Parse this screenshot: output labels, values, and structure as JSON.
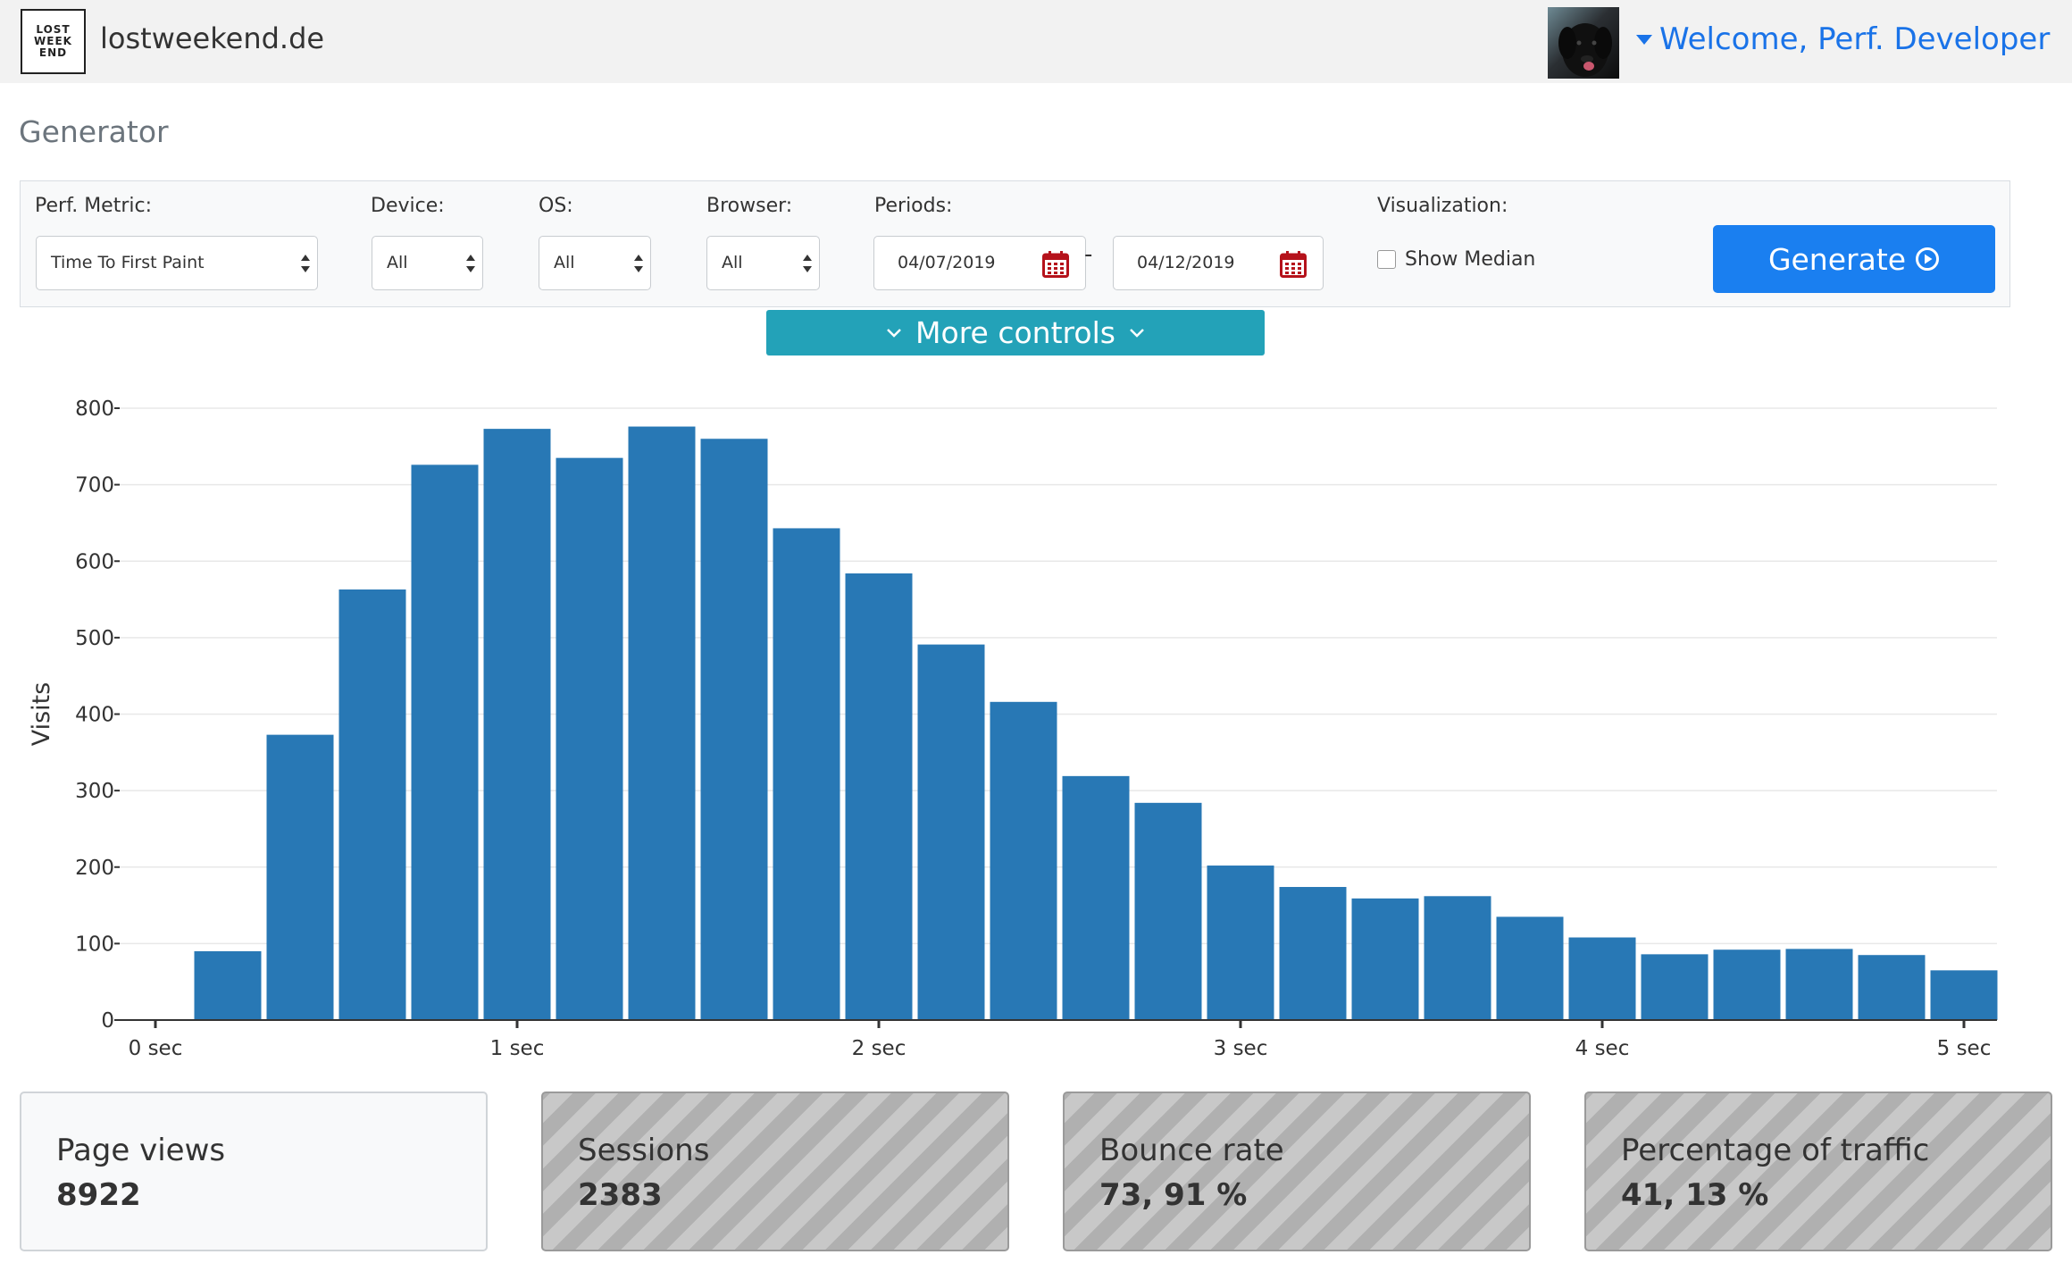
{
  "header": {
    "logo_lines": [
      "LOST",
      "WEEK",
      "END"
    ],
    "site_name": "lostweekend.de",
    "welcome": "Welcome, Perf. Developer"
  },
  "page": {
    "title": "Generator"
  },
  "controls": {
    "metric": {
      "label": "Perf. Metric:",
      "value": "Time To First Paint"
    },
    "device": {
      "label": "Device:",
      "value": "All"
    },
    "os": {
      "label": "OS:",
      "value": "All"
    },
    "browser": {
      "label": "Browser:",
      "value": "All"
    },
    "periods": {
      "label": "Periods:",
      "start": "04/07/2019",
      "separator": "-",
      "end": "04/12/2019"
    },
    "visualization": {
      "label": "Visualization:",
      "show_median_label": "Show Median",
      "show_median_checked": false
    },
    "generate_label": "Generate",
    "more_controls_label": "More controls"
  },
  "chart_data": {
    "type": "bar",
    "ylabel": "Visits",
    "xlim": [
      0,
      5
    ],
    "ylim": [
      0,
      800
    ],
    "yticks": [
      0,
      100,
      200,
      300,
      400,
      500,
      600,
      700,
      800
    ],
    "xticks": [
      0,
      1,
      2,
      3,
      4,
      5
    ],
    "xtick_labels": [
      "0 sec",
      "1 sec",
      "2 sec",
      "3 sec",
      "4 sec",
      "5 sec"
    ],
    "bar_color": "#2878b5",
    "grid": true,
    "bin_width": 0.2,
    "x": [
      0.2,
      0.4,
      0.6,
      0.8,
      1.0,
      1.2,
      1.4,
      1.6,
      1.8,
      2.0,
      2.2,
      2.4,
      2.6,
      2.8,
      3.0,
      3.2,
      3.4,
      3.6,
      3.8,
      4.0,
      4.2,
      4.4,
      4.6,
      4.8,
      5.0
    ],
    "values": [
      90,
      373,
      563,
      726,
      773,
      735,
      776,
      760,
      643,
      584,
      491,
      416,
      319,
      284,
      202,
      174,
      159,
      162,
      135,
      108,
      86,
      92,
      93,
      85,
      65
    ]
  },
  "stats": [
    {
      "title": "Page views",
      "value": "8922",
      "disabled": false
    },
    {
      "title": "Sessions",
      "value": "2383",
      "disabled": true
    },
    {
      "title": "Bounce rate",
      "value": "73, 91 %",
      "disabled": true
    },
    {
      "title": "Percentage of traffic",
      "value": "41, 13 %",
      "disabled": true
    }
  ],
  "colors": {
    "accent": "#1a7ff0",
    "teal": "#23a2b8",
    "link": "#1a73e8",
    "calendar": "#b5121b"
  }
}
